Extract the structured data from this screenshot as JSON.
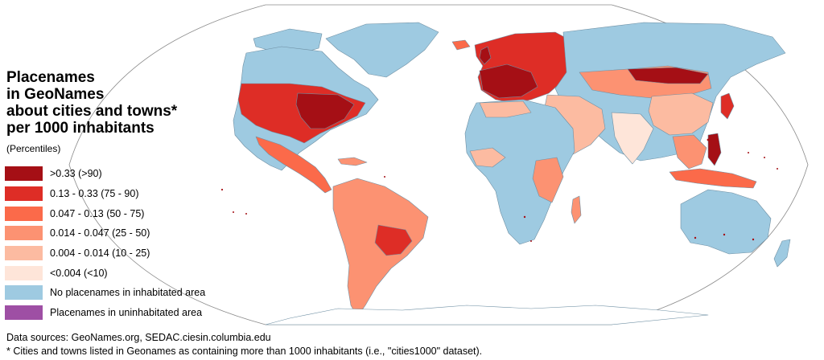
{
  "title_lines": [
    "Placenames",
    "in GeoNames",
    "about cities and towns*",
    "per 1000 inhabitants"
  ],
  "subtitle": "(Percentiles)",
  "legend": [
    {
      "label": ">0.33 (>90)",
      "color": "#a50f15"
    },
    {
      "label": "0.13 - 0.33 (75 - 90)",
      "color": "#de2d26"
    },
    {
      "label": "0.047 - 0.13 (50 - 75)",
      "color": "#fb6a4a"
    },
    {
      "label": "0.014 - 0.047 (25 - 50)",
      "color": "#fc9272"
    },
    {
      "label": "0.004 - 0.014 (10 - 25)",
      "color": "#fcbba1"
    },
    {
      "label": "<0.004 (<10)",
      "color": "#fee5d9"
    },
    {
      "label": "No placenames in inhabitated area",
      "color": "#9ecae1"
    },
    {
      "label": "Placenames in uninhabitated area",
      "color": "#9e4fa4"
    }
  ],
  "sources": "Data sources: GeoNames.org, SEDAC.ciesin.columbia.edu",
  "footnote": "* Cities and towns listed in Geonames as containing more than 1000 inhabitants (i.e., \"cities1000\" dataset).",
  "colors": {
    "land_none": "#9ecae1",
    "border": "#6e8fa3",
    "outline": "#8a8a8a"
  }
}
